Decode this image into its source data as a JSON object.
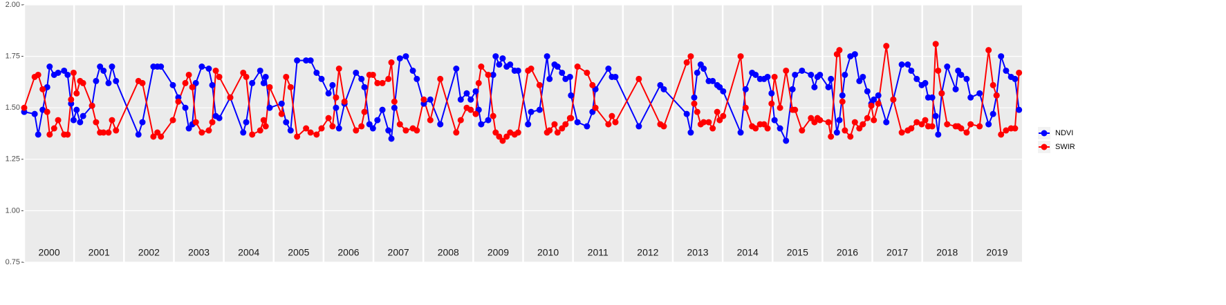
{
  "chart_data": {
    "type": "line",
    "x": [
      2000.0,
      2000.21,
      2000.28,
      2000.37,
      2000.46,
      2000.51,
      2000.6,
      2000.68,
      2000.8,
      2000.87,
      2000.94,
      2000.99,
      2001.05,
      2001.12,
      2001.18,
      2001.36,
      2001.44,
      2001.52,
      2001.59,
      2001.69,
      2001.76,
      2001.84,
      2002.29,
      2002.37,
      2002.59,
      2002.67,
      2002.74,
      2002.98,
      2003.09,
      2003.23,
      2003.3,
      2003.37,
      2003.44,
      2003.56,
      2003.7,
      2003.77,
      2003.84,
      2003.91,
      2004.13,
      2004.39,
      2004.45,
      2004.57,
      2004.73,
      2004.8,
      2004.84,
      2004.92,
      2005.16,
      2005.25,
      2005.34,
      2005.47,
      2005.65,
      2005.74,
      2005.86,
      2005.96,
      2006.1,
      2006.18,
      2006.25,
      2006.31,
      2006.42,
      2006.65,
      2006.76,
      2006.82,
      2006.92,
      2006.99,
      2007.08,
      2007.18,
      2007.3,
      2007.36,
      2007.42,
      2007.53,
      2007.65,
      2007.79,
      2007.87,
      2008.01,
      2008.14,
      2008.34,
      2008.66,
      2008.75,
      2008.87,
      2008.95,
      2009.05,
      2009.11,
      2009.16,
      2009.3,
      2009.4,
      2009.45,
      2009.52,
      2009.59,
      2009.67,
      2009.74,
      2009.83,
      2009.9,
      2010.1,
      2010.16,
      2010.33,
      2010.48,
      2010.53,
      2010.63,
      2010.69,
      2010.78,
      2010.85,
      2010.94,
      2010.96,
      2011.09,
      2011.28,
      2011.39,
      2011.45,
      2011.71,
      2011.78,
      2011.85,
      2012.32,
      2012.75,
      2012.82,
      2013.28,
      2013.36,
      2013.43,
      2013.49,
      2013.56,
      2013.62,
      2013.72,
      2013.8,
      2013.89,
      2013.94,
      2014.01,
      2014.36,
      2014.46,
      2014.59,
      2014.66,
      2014.75,
      2014.83,
      2014.9,
      2014.98,
      2015.04,
      2015.15,
      2015.27,
      2015.4,
      2015.45,
      2015.59,
      2015.77,
      2015.84,
      2015.9,
      2015.95,
      2016.12,
      2016.17,
      2016.29,
      2016.34,
      2016.4,
      2016.45,
      2016.56,
      2016.65,
      2016.74,
      2016.81,
      2016.9,
      2016.98,
      2017.03,
      2017.12,
      2017.28,
      2017.42,
      2017.59,
      2017.71,
      2017.78,
      2017.89,
      2017.99,
      2018.06,
      2018.12,
      2018.2,
      2018.27,
      2018.32,
      2018.39,
      2018.5,
      2018.67,
      2018.72,
      2018.78,
      2018.89,
      2018.97,
      2019.15,
      2019.33,
      2019.42,
      2019.49,
      2019.58,
      2019.68,
      2019.78,
      2019.86,
      2019.94
    ],
    "series": [
      {
        "name": "NDVI",
        "color": "#0000ff",
        "values": [
          1.48,
          1.47,
          1.37,
          1.49,
          1.6,
          1.7,
          1.66,
          1.67,
          1.68,
          1.66,
          1.52,
          1.44,
          1.49,
          1.43,
          1.46,
          1.51,
          1.63,
          1.7,
          1.68,
          1.62,
          1.7,
          1.63,
          1.37,
          1.43,
          1.7,
          1.7,
          1.7,
          1.61,
          1.55,
          1.5,
          1.4,
          1.42,
          1.62,
          1.7,
          1.69,
          1.61,
          1.46,
          1.45,
          1.55,
          1.38,
          1.43,
          1.62,
          1.68,
          1.62,
          1.65,
          1.5,
          1.52,
          1.43,
          1.39,
          1.73,
          1.73,
          1.73,
          1.67,
          1.64,
          1.57,
          1.61,
          1.5,
          1.4,
          1.52,
          1.67,
          1.64,
          1.6,
          1.42,
          1.4,
          1.44,
          1.49,
          1.39,
          1.35,
          1.5,
          1.74,
          1.75,
          1.68,
          1.64,
          1.52,
          1.54,
          1.42,
          1.69,
          1.54,
          1.57,
          1.54,
          1.58,
          1.49,
          1.42,
          1.44,
          1.66,
          1.75,
          1.71,
          1.74,
          1.7,
          1.71,
          1.68,
          1.68,
          1.42,
          1.48,
          1.49,
          1.75,
          1.64,
          1.71,
          1.7,
          1.67,
          1.64,
          1.65,
          1.56,
          1.43,
          1.41,
          1.48,
          1.59,
          1.69,
          1.65,
          1.65,
          1.41,
          1.61,
          1.59,
          1.47,
          1.38,
          1.55,
          1.67,
          1.71,
          1.69,
          1.63,
          1.63,
          1.61,
          1.6,
          1.58,
          1.38,
          1.59,
          1.67,
          1.66,
          1.64,
          1.64,
          1.65,
          1.57,
          1.44,
          1.4,
          1.34,
          1.59,
          1.66,
          1.68,
          1.66,
          1.6,
          1.65,
          1.66,
          1.6,
          1.64,
          1.38,
          1.44,
          1.56,
          1.66,
          1.75,
          1.76,
          1.63,
          1.65,
          1.58,
          1.52,
          1.54,
          1.56,
          1.43,
          1.54,
          1.71,
          1.71,
          1.68,
          1.64,
          1.61,
          1.62,
          1.55,
          1.55,
          1.46,
          1.37,
          1.57,
          1.7,
          1.59,
          1.68,
          1.66,
          1.64,
          1.55,
          1.57,
          1.42,
          1.47,
          1.56,
          1.75,
          1.68,
          1.65,
          1.64,
          1.49
        ]
      },
      {
        "name": "SWIR",
        "color": "#ff0000",
        "values": [
          1.5,
          1.65,
          1.66,
          1.59,
          1.48,
          1.37,
          1.4,
          1.44,
          1.37,
          1.37,
          1.54,
          1.67,
          1.57,
          1.63,
          1.62,
          1.51,
          1.43,
          1.38,
          1.38,
          1.38,
          1.44,
          1.39,
          1.63,
          1.62,
          1.36,
          1.38,
          1.36,
          1.44,
          1.53,
          1.62,
          1.66,
          1.6,
          1.43,
          1.38,
          1.39,
          1.43,
          1.68,
          1.65,
          1.55,
          1.67,
          1.65,
          1.37,
          1.39,
          1.44,
          1.41,
          1.6,
          1.47,
          1.65,
          1.6,
          1.36,
          1.4,
          1.38,
          1.37,
          1.4,
          1.45,
          1.41,
          1.55,
          1.69,
          1.53,
          1.39,
          1.41,
          1.48,
          1.66,
          1.66,
          1.62,
          1.62,
          1.64,
          1.72,
          1.53,
          1.42,
          1.39,
          1.4,
          1.39,
          1.54,
          1.44,
          1.64,
          1.38,
          1.44,
          1.5,
          1.49,
          1.47,
          1.62,
          1.7,
          1.66,
          1.46,
          1.38,
          1.36,
          1.34,
          1.36,
          1.38,
          1.37,
          1.38,
          1.68,
          1.69,
          1.61,
          1.38,
          1.39,
          1.42,
          1.38,
          1.4,
          1.42,
          1.45,
          1.45,
          1.7,
          1.67,
          1.61,
          1.5,
          1.42,
          1.46,
          1.43,
          1.64,
          1.42,
          1.41,
          1.72,
          1.75,
          1.52,
          1.48,
          1.42,
          1.43,
          1.43,
          1.4,
          1.48,
          1.44,
          1.46,
          1.75,
          1.5,
          1.41,
          1.4,
          1.42,
          1.42,
          1.4,
          1.52,
          1.65,
          1.5,
          1.68,
          1.49,
          1.49,
          1.39,
          1.45,
          1.43,
          1.45,
          1.44,
          1.43,
          1.36,
          1.76,
          1.78,
          1.53,
          1.39,
          1.36,
          1.43,
          1.4,
          1.42,
          1.45,
          1.51,
          1.44,
          1.52,
          1.8,
          1.54,
          1.38,
          1.39,
          1.4,
          1.43,
          1.42,
          1.44,
          1.41,
          1.41,
          1.81,
          1.68,
          1.57,
          1.42,
          1.41,
          1.41,
          1.4,
          1.38,
          1.42,
          1.41,
          1.78,
          1.61,
          1.56,
          1.37,
          1.39,
          1.4,
          1.4,
          1.67
        ]
      }
    ],
    "xlim": [
      2000,
      2020
    ],
    "xticks": [
      {
        "value": 2000,
        "label": "2000"
      },
      {
        "value": 2001,
        "label": "2001"
      },
      {
        "value": 2002,
        "label": "2002"
      },
      {
        "value": 2003,
        "label": "2003"
      },
      {
        "value": 2004,
        "label": "2004"
      },
      {
        "value": 2005,
        "label": "2005"
      },
      {
        "value": 2006,
        "label": "2006"
      },
      {
        "value": 2007,
        "label": "2007"
      },
      {
        "value": 2008,
        "label": "2008"
      },
      {
        "value": 2009,
        "label": "2009"
      },
      {
        "value": 2010,
        "label": "2010"
      },
      {
        "value": 2011,
        "label": "2011"
      },
      {
        "value": 2012,
        "label": "2012"
      },
      {
        "value": 2013,
        "label": "2013"
      },
      {
        "value": 2014,
        "label": "2014"
      },
      {
        "value": 2015,
        "label": "2015"
      },
      {
        "value": 2016,
        "label": "2016"
      },
      {
        "value": 2017,
        "label": "2017"
      },
      {
        "value": 2018,
        "label": "2018"
      },
      {
        "value": 2019,
        "label": "2019"
      }
    ],
    "ylim": [
      0.75,
      2.0
    ],
    "yticks": [
      {
        "value": 0.75,
        "label": "0.75"
      },
      {
        "value": 1.0,
        "label": "1.00"
      },
      {
        "value": 1.25,
        "label": "1.25"
      },
      {
        "value": 1.5,
        "label": "1.50"
      },
      {
        "value": 1.75,
        "label": "1.75"
      },
      {
        "value": 2.0,
        "label": "2.00"
      }
    ],
    "grid": true,
    "legend": "right"
  }
}
